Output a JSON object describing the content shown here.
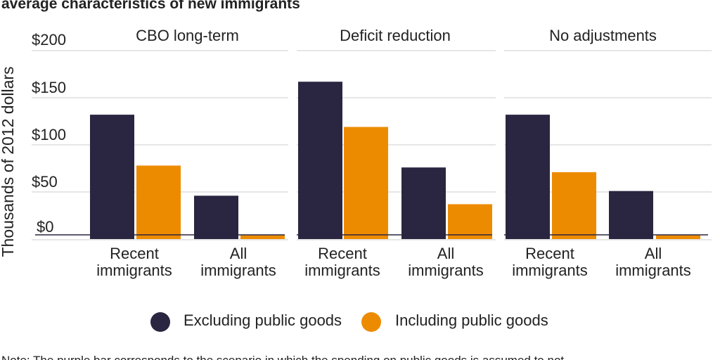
{
  "title": "average characteristics of new immigrants",
  "note": "Note: The purple bar corresponds to the scenario in which the spending on public goods is assumed to not",
  "colors": {
    "excluding": "#2a2540",
    "including": "#ed8b00",
    "grid": "#e6e6e6",
    "zero_line": "#2a2540"
  },
  "chart_data": {
    "type": "bar",
    "ylabel": "Thousands of 2012 dollars",
    "ylim": [
      0,
      200
    ],
    "yticks": [
      "$0",
      "$50",
      "$100",
      "$150",
      "$200"
    ],
    "ytick_values": [
      0,
      50,
      100,
      150,
      200
    ],
    "categories": [
      "Recent immigrants",
      "All immigrants"
    ],
    "category_lines": [
      [
        "Recent",
        "immigrants"
      ],
      [
        "All",
        "immigrants"
      ]
    ],
    "legend": {
      "placement": "bottom",
      "entries": [
        "Excluding public goods",
        "Including public goods"
      ]
    },
    "grid": true,
    "panels": [
      {
        "title": "CBO long-term",
        "series": [
          {
            "name": "Excluding public goods",
            "values": [
              132,
              46
            ]
          },
          {
            "name": "Including public goods",
            "values": [
              78,
              4
            ]
          }
        ]
      },
      {
        "title": "Deficit reduction",
        "series": [
          {
            "name": "Excluding public goods",
            "values": [
              167,
              76
            ]
          },
          {
            "name": "Including public goods",
            "values": [
              119,
              37
            ]
          }
        ]
      },
      {
        "title": "No adjustments",
        "series": [
          {
            "name": "Excluding public goods",
            "values": [
              132,
              51
            ]
          },
          {
            "name": "Including public goods",
            "values": [
              71,
              4
            ]
          }
        ]
      }
    ]
  }
}
